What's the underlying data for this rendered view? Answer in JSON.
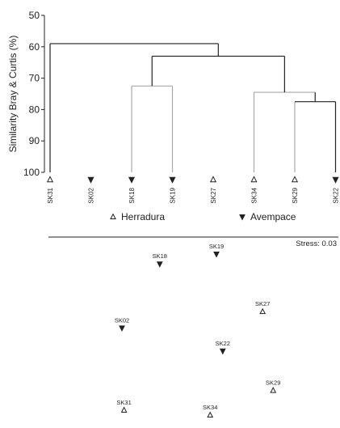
{
  "chart_data": [
    {
      "type": "dendrogram",
      "ylabel": "Similarity Bray & Curtis (%)",
      "y_ticks": [
        "50",
        "60",
        "70",
        "80",
        "90",
        "100"
      ],
      "ylim": [
        50,
        100
      ],
      "y_inverted": true,
      "leaves": [
        {
          "label": "SK31",
          "group": "Herradura"
        },
        {
          "label": "SK02",
          "group": "Avempace"
        },
        {
          "label": "SK18",
          "group": "Avempace"
        },
        {
          "label": "SK19",
          "group": "Avempace"
        },
        {
          "label": "SK27",
          "group": "Herradura"
        },
        {
          "label": "SK34",
          "group": "Herradura"
        },
        {
          "label": "SK29",
          "group": "Herradura"
        },
        {
          "label": "SK22",
          "group": "Avempace"
        }
      ],
      "merges": [
        {
          "id": "m1",
          "children": [
            "SK18",
            "SK19"
          ],
          "similarity": 72.5
        },
        {
          "id": "m2",
          "children": [
            "SK29",
            "SK22"
          ],
          "similarity": 77.5
        },
        {
          "id": "m3",
          "children": [
            "SK34",
            "m2"
          ],
          "similarity": 74.5
        },
        {
          "id": "m4",
          "children": [
            "m1",
            "m3"
          ],
          "similarity": 63.0
        },
        {
          "id": "m5",
          "children": [
            "SK31",
            "m4"
          ],
          "similarity": 59.0
        }
      ]
    },
    {
      "type": "scatter",
      "annotation": "Stress: 0.03",
      "xlim": [
        0,
        1
      ],
      "ylim": [
        0,
        1
      ],
      "points": [
        {
          "label": "SK19",
          "group": "Avempace",
          "x": 0.6,
          "y": 0.98
        },
        {
          "label": "SK18",
          "group": "Avempace",
          "x": 0.33,
          "y": 0.92
        },
        {
          "label": "SK27",
          "group": "Herradura",
          "x": 0.82,
          "y": 0.63
        },
        {
          "label": "SK02",
          "group": "Avempace",
          "x": 0.15,
          "y": 0.53
        },
        {
          "label": "SK22",
          "group": "Avempace",
          "x": 0.63,
          "y": 0.39
        },
        {
          "label": "SK29",
          "group": "Herradura",
          "x": 0.87,
          "y": 0.15
        },
        {
          "label": "SK31",
          "group": "Herradura",
          "x": 0.16,
          "y": 0.03
        },
        {
          "label": "SK34",
          "group": "Herradura",
          "x": 0.57,
          "y": 0.0
        }
      ]
    }
  ],
  "legend": [
    {
      "label": "Herradura",
      "marker": "open-triangle-up"
    },
    {
      "label": "Avempace",
      "marker": "filled-triangle-down"
    }
  ],
  "colors": {
    "line": "#222222",
    "tree_gray": "#aaaaaa",
    "text": "#222222"
  }
}
